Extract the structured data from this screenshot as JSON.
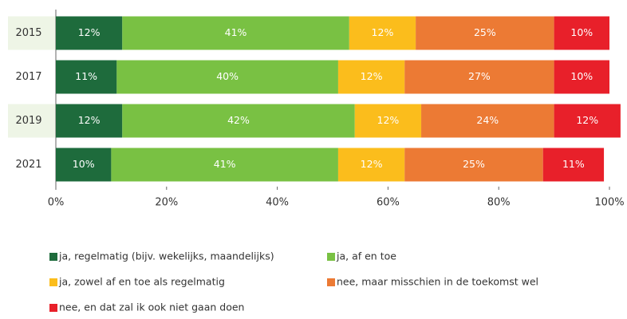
{
  "chart_data": {
    "type": "stacked-bar-horizontal",
    "categories": [
      "2015",
      "2017",
      "2019",
      "2021"
    ],
    "series": [
      {
        "name": "ja, regelmatig  (bijv. wekelijks, maandelijks)",
        "color": "#1e6b3c",
        "values": [
          12,
          11,
          12,
          10
        ],
        "value_labels": [
          "12%",
          "11%",
          "12%",
          "10%"
        ]
      },
      {
        "name": "ja, af en toe",
        "color": "#79c143",
        "values": [
          41,
          40,
          42,
          41
        ],
        "value_labels": [
          "41%",
          "40%",
          "42%",
          "41%"
        ]
      },
      {
        "name": "ja, zowel af en toe als regelmatig",
        "color": "#fbbd1c",
        "values": [
          12,
          12,
          12,
          12
        ],
        "value_labels": [
          "12%",
          "12%",
          "12%",
          "12%"
        ]
      },
      {
        "name": "nee, maar misschien in de toekomst wel",
        "color": "#ec7a34",
        "values": [
          25,
          27,
          24,
          25
        ],
        "value_labels": [
          "25%",
          "27%",
          "24%",
          "25%"
        ]
      },
      {
        "name": "nee, en dat zal ik ook niet gaan doen",
        "color": "#e8202a",
        "values": [
          10,
          10,
          12,
          11
        ],
        "value_labels": [
          "10%",
          "10%",
          "12%",
          "11%"
        ]
      }
    ],
    "xlim": [
      0,
      100
    ],
    "xticks": [
      {
        "value": 0,
        "label": "0%"
      },
      {
        "value": 20,
        "label": "20%"
      },
      {
        "value": 40,
        "label": "40%"
      },
      {
        "value": 60,
        "label": "60%"
      },
      {
        "value": 80,
        "label": "80%"
      },
      {
        "value": 100,
        "label": "100%"
      }
    ],
    "legend": "bottom"
  }
}
